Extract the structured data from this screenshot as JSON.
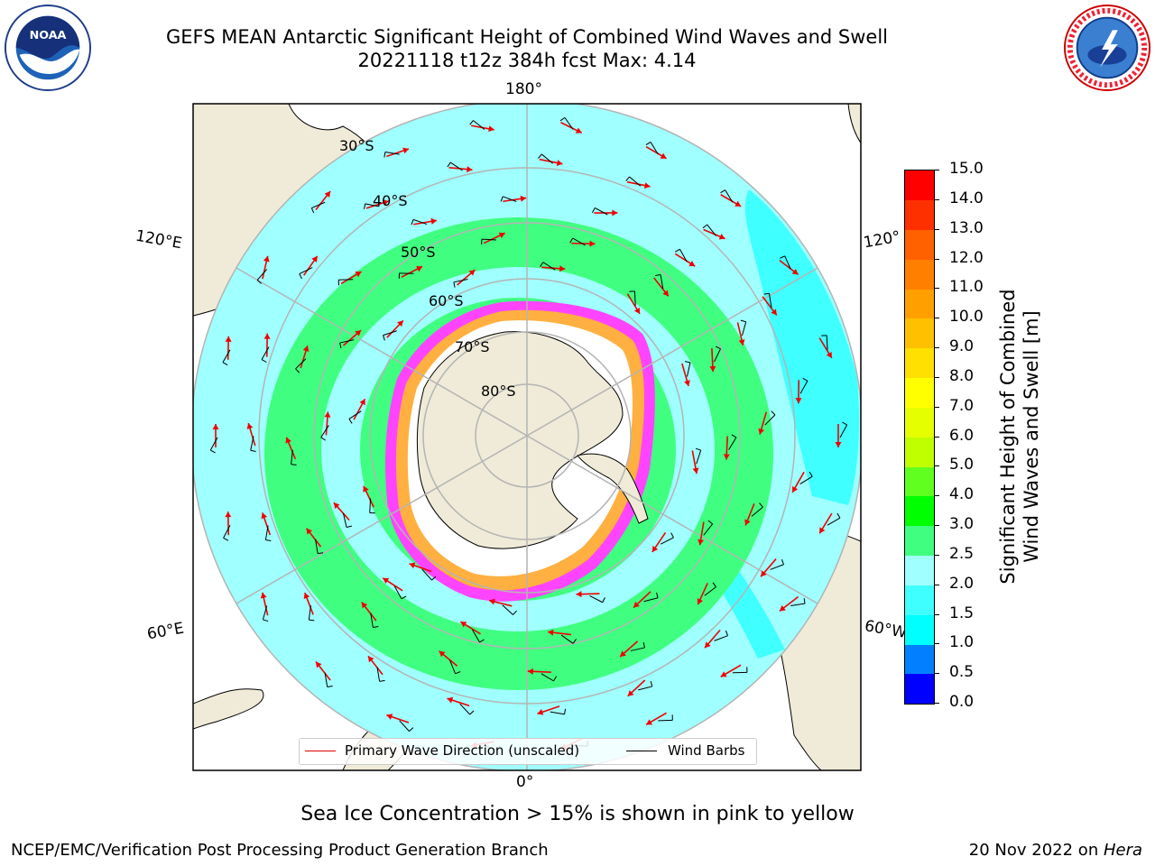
{
  "title": {
    "line1": "GEFS MEAN Antarctic Significant Height of Combined Wind Waves and Swell",
    "line2": "20221118 t12z 384h fcst   Max: 4.14"
  },
  "map": {
    "projection": "south-polar-stereographic",
    "lon_labels": {
      "top": "180°",
      "bottom": "0°",
      "upper_left": "120°E",
      "lower_left": "60°E",
      "upper_right": "120°",
      "lower_right": "60°W"
    },
    "lat_labels": [
      "30°S",
      "40°S",
      "50°S",
      "60°S",
      "70°S",
      "80°S"
    ],
    "colors": {
      "land": "#efebd8",
      "ice_shelf": "#ffffff",
      "sea_ice_edge": [
        "#ff44ff",
        "#ffb040"
      ],
      "grid": "#b4b4b4",
      "arrow": "#ee0000",
      "barb": "#000000"
    }
  },
  "legend": {
    "primary_wave_direction": "Primary Wave Direction (unscaled)",
    "wind_barbs": "Wind Barbs"
  },
  "colorbar": {
    "title_line1": "Significant Height of Combined",
    "title_line2": "Wind Waves and Swell [m]",
    "ticks": [
      "0.0",
      "0.5",
      "1.0",
      "1.5",
      "2.0",
      "2.5",
      "3.0",
      "4.0",
      "5.0",
      "6.0",
      "7.0",
      "8.0",
      "9.0",
      "10.0",
      "11.0",
      "12.0",
      "13.0",
      "14.0",
      "15.0"
    ],
    "colors": [
      "#0000ff",
      "#0080ff",
      "#00ffff",
      "#40ffff",
      "#a0ffff",
      "#40ff80",
      "#00ff00",
      "#60ff20",
      "#c0ff00",
      "#e6ff00",
      "#ffff00",
      "#ffe000",
      "#ffc000",
      "#ffa000",
      "#ff8000",
      "#ff6000",
      "#ff3000",
      "#ff0000"
    ]
  },
  "note": "Sea Ice Concentration > 15% is shown in pink to yellow",
  "footer": {
    "left": "NCEP/EMC/Verification Post Processing Product Generation Branch",
    "right_prefix": "20 Nov 2022 on ",
    "right_host": "Hera"
  },
  "logos": {
    "left": "noaa-logo",
    "right": "nws-logo"
  }
}
